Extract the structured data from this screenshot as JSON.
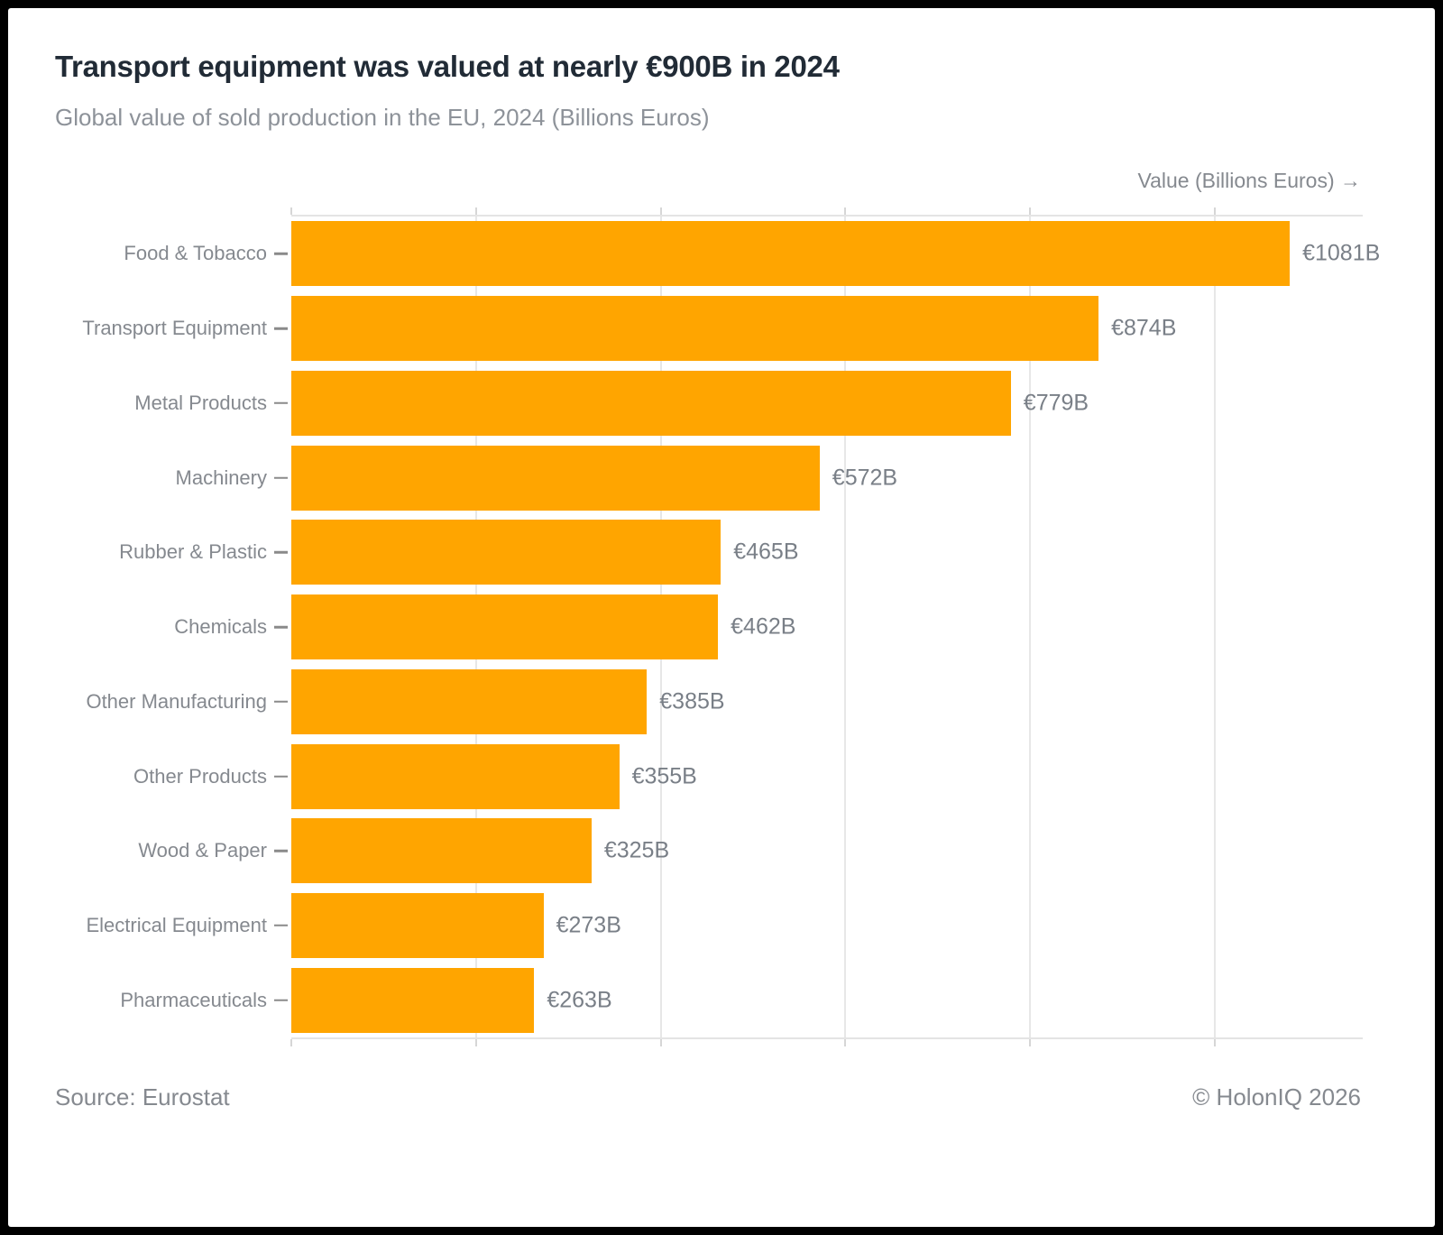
{
  "header": {
    "title": "Transport equipment was valued at nearly €900B in 2024",
    "subtitle": "Global value of sold production in the EU, 2024 (Billions Euros)"
  },
  "chart_data": {
    "type": "bar",
    "orientation": "horizontal",
    "title": "Transport equipment was valued at nearly €900B in 2024",
    "subtitle": "Global value of sold production in the EU, 2024 (Billions Euros)",
    "axis_title": "Value (Billions Euros) →",
    "categories": [
      "Food & Tobacco",
      "Transport Equipment",
      "Metal Products",
      "Machinery",
      "Rubber & Plastic",
      "Chemicals",
      "Other Manufacturing",
      "Other Products",
      "Wood & Paper",
      "Electrical Equipment",
      "Pharmaceuticals"
    ],
    "values": [
      1081,
      874,
      779,
      572,
      465,
      462,
      385,
      355,
      325,
      273,
      263
    ],
    "labels": [
      "€1081B",
      "€874B",
      "€779B",
      "€572B",
      "€465B",
      "€462B",
      "€385B",
      "€355B",
      "€325B",
      "€273B",
      "€263B"
    ],
    "xlim": [
      0,
      1160
    ],
    "gridlines": [
      200,
      400,
      600,
      800,
      1000
    ],
    "ticks": [
      0,
      200,
      400,
      600,
      800,
      1000
    ],
    "grid": true,
    "legend": "none",
    "bar_color": "#FFA500"
  },
  "footer": {
    "source": "Source: Eurostat",
    "copyright": "© HolonIQ 2026"
  }
}
